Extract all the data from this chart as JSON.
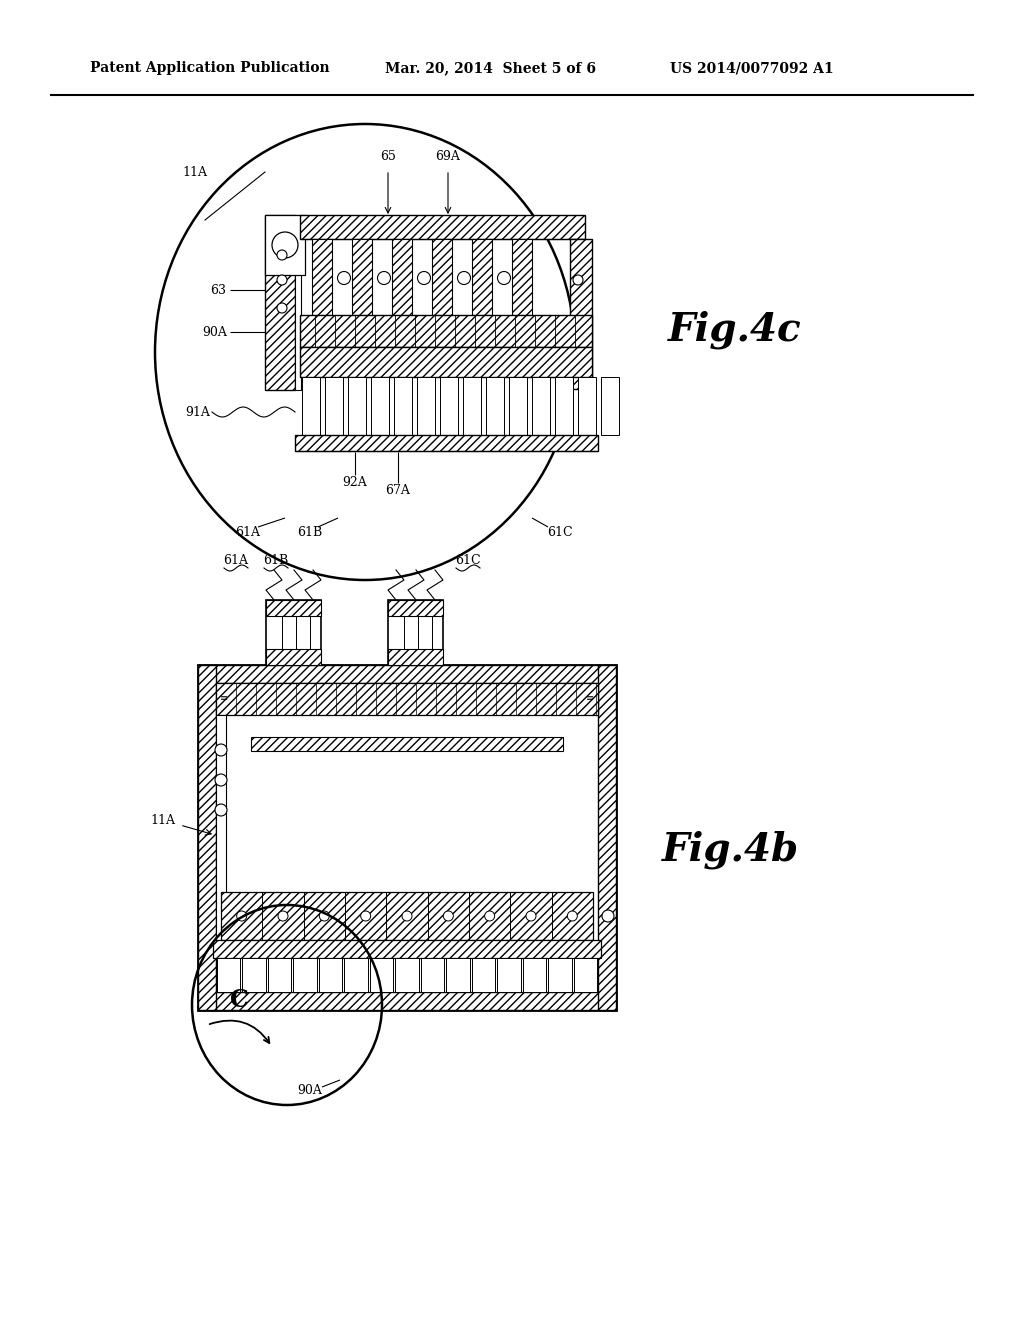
{
  "header_left": "Patent Application Publication",
  "header_mid": "Mar. 20, 2014  Sheet 5 of 6",
  "header_right": "US 2014/0077092 A1",
  "fig4c_label": "Fig.4c",
  "fig4b_label": "Fig.4b",
  "bg": "#ffffff"
}
